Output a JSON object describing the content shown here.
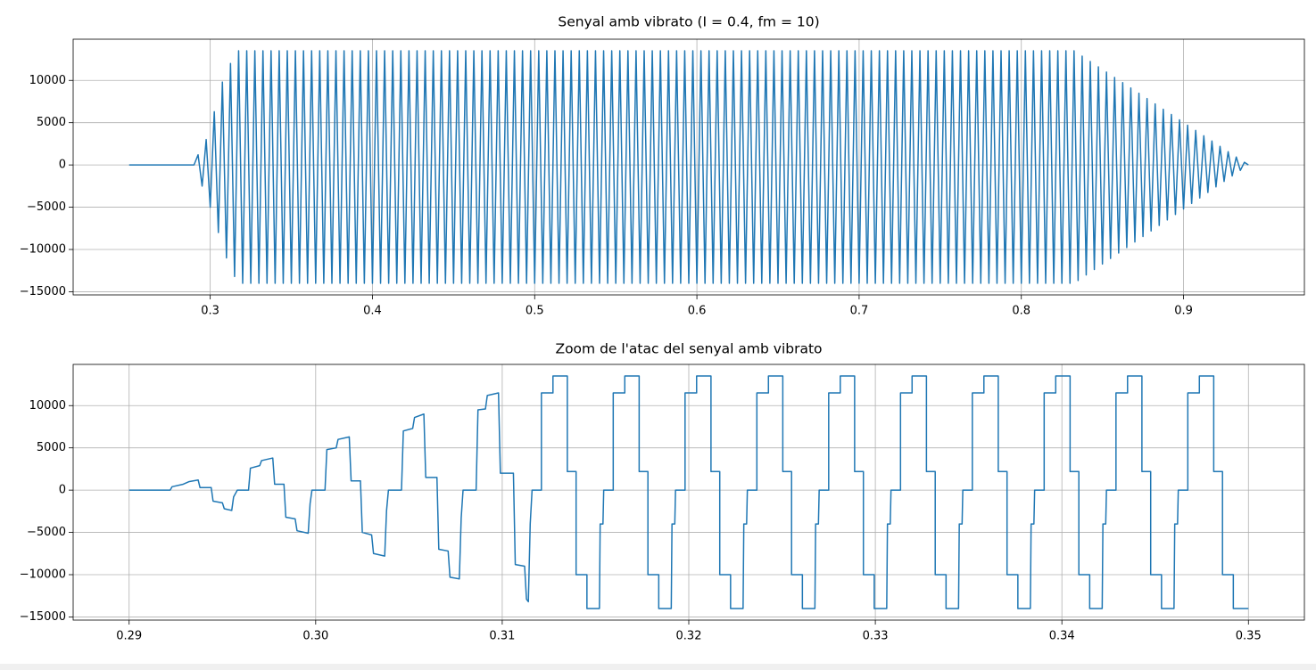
{
  "chart_data": [
    {
      "type": "line",
      "title": "Senyal amb vibrato (I = 0.4, fm = 10)",
      "color": "#1f77b4",
      "grid": true,
      "xlim": [
        0.2155,
        0.9745
      ],
      "ylim": [
        -15375,
        14875
      ],
      "xticks": [
        0.3,
        0.4,
        0.5,
        0.6,
        0.7,
        0.8,
        0.9
      ],
      "yticks": [
        10000,
        5000,
        0,
        {
          "value": -5000,
          "label": "−5000"
        },
        {
          "value": -10000,
          "label": "−10000"
        },
        {
          "value": -15000,
          "label": "−15000"
        }
      ],
      "x": [
        0.25,
        0.29,
        0.2925,
        0.295,
        0.2975,
        0.3,
        0.3025,
        0.305,
        0.3075,
        0.31,
        0.3125,
        0.315,
        0.3175,
        0.32,
        0.3225,
        0.325,
        0.3275,
        0.33,
        0.3325,
        0.335,
        0.3375,
        0.34,
        0.3425,
        0.345,
        0.3475,
        0.35,
        0.3525,
        0.355,
        0.3575,
        0.36,
        0.3625,
        0.365,
        0.3675,
        0.37,
        0.3725,
        0.375,
        0.3775,
        0.38,
        0.3825,
        0.385,
        0.3875,
        0.39,
        0.3925,
        0.395,
        0.3975,
        0.4,
        0.4025,
        0.405,
        0.4075,
        0.41,
        0.4125,
        0.415,
        0.4175,
        0.42,
        0.4225,
        0.425,
        0.4275,
        0.43,
        0.4325,
        0.435,
        0.4375,
        0.44,
        0.4425,
        0.445,
        0.4475,
        0.45,
        0.4525,
        0.455,
        0.4575,
        0.46,
        0.4625,
        0.465,
        0.4675,
        0.47,
        0.4725,
        0.475,
        0.4775,
        0.48,
        0.4825,
        0.485,
        0.4875,
        0.49,
        0.4925,
        0.495,
        0.4975,
        0.5,
        0.5025,
        0.505,
        0.5075,
        0.51,
        0.5125,
        0.515,
        0.5175,
        0.52,
        0.5225,
        0.525,
        0.5275,
        0.53,
        0.5325,
        0.535,
        0.5375,
        0.54,
        0.5425,
        0.545,
        0.5475,
        0.55,
        0.5525,
        0.555,
        0.5575,
        0.56,
        0.5625,
        0.565,
        0.5675,
        0.57,
        0.5725,
        0.575,
        0.5775,
        0.58,
        0.5825,
        0.585,
        0.5875,
        0.59,
        0.5925,
        0.595,
        0.5975,
        0.6,
        0.6025,
        0.605,
        0.6075,
        0.61,
        0.6125,
        0.615,
        0.6175,
        0.62,
        0.6225,
        0.625,
        0.6275,
        0.63,
        0.6325,
        0.635,
        0.6375,
        0.64,
        0.6425,
        0.645,
        0.6475,
        0.65,
        0.6525,
        0.655,
        0.6575,
        0.66,
        0.6625,
        0.665,
        0.6675,
        0.67,
        0.6725,
        0.675,
        0.6775,
        0.68,
        0.6825,
        0.685,
        0.6875,
        0.69,
        0.6925,
        0.695,
        0.6975,
        0.7,
        0.7025,
        0.705,
        0.7075,
        0.71,
        0.7125,
        0.715,
        0.7175,
        0.72,
        0.7225,
        0.725,
        0.7275,
        0.73,
        0.7325,
        0.735,
        0.7375,
        0.74,
        0.7425,
        0.745,
        0.7475,
        0.75,
        0.7525,
        0.755,
        0.7575,
        0.76,
        0.7625,
        0.765,
        0.7675,
        0.77,
        0.7725,
        0.775,
        0.7775,
        0.78,
        0.7825,
        0.785,
        0.7875,
        0.79,
        0.7925,
        0.795,
        0.7975,
        0.8,
        0.8025,
        0.805,
        0.8075,
        0.81,
        0.8125,
        0.815,
        0.8175,
        0.82,
        0.8225,
        0.825,
        0.8275,
        0.83,
        0.8325,
        0.835,
        0.8375,
        0.84,
        0.8425,
        0.845,
        0.8475,
        0.85,
        0.8525,
        0.855,
        0.8575,
        0.86,
        0.8625,
        0.865,
        0.8675,
        0.87,
        0.8725,
        0.875,
        0.8775,
        0.88,
        0.8825,
        0.885,
        0.8875,
        0.89,
        0.8925,
        0.895,
        0.8975,
        0.9,
        0.9025,
        0.905,
        0.9075,
        0.91,
        0.9125,
        0.915,
        0.9175,
        0.92,
        0.9225,
        0.925,
        0.9275,
        0.93,
        0.9325,
        0.935,
        0.9375,
        0.94
      ],
      "values": [
        0,
        0,
        1200,
        -2500,
        3000,
        -5000,
        6300,
        -8000,
        9800,
        -11000,
        12000,
        -13200,
        13500,
        -14000,
        13500,
        -14000,
        13500,
        -14000,
        13500,
        -14000,
        13500,
        -14000,
        13500,
        -14000,
        13500,
        -14000,
        13500,
        -14000,
        13500,
        -14000,
        13500,
        -14000,
        13500,
        -14000,
        13500,
        -14000,
        13500,
        -14000,
        13500,
        -14000,
        13500,
        -14000,
        13500,
        -14000,
        13500,
        -14000,
        13500,
        -14000,
        13500,
        -14000,
        13500,
        -14000,
        13500,
        -14000,
        13500,
        -14000,
        13500,
        -14000,
        13500,
        -14000,
        13500,
        -14000,
        13500,
        -14000,
        13500,
        -14000,
        13500,
        -14000,
        13500,
        -14000,
        13500,
        -14000,
        13500,
        -14000,
        13500,
        -14000,
        13500,
        -14000,
        13500,
        -14000,
        13500,
        -14000,
        13500,
        -14000,
        13500,
        -14000,
        13500,
        -14000,
        13500,
        -14000,
        13500,
        -14000,
        13500,
        -14000,
        13500,
        -14000,
        13500,
        -14000,
        13500,
        -14000,
        13500,
        -14000,
        13500,
        -14000,
        13500,
        -14000,
        13500,
        -14000,
        13500,
        -14000,
        13500,
        -14000,
        13500,
        -14000,
        13500,
        -14000,
        13500,
        -14000,
        13500,
        -14000,
        13500,
        -14000,
        13500,
        -14000,
        13500,
        -14000,
        13500,
        -14000,
        13500,
        -14000,
        13500,
        -14000,
        13500,
        -14000,
        13500,
        -14000,
        13500,
        -14000,
        13500,
        -14000,
        13500,
        -14000,
        13500,
        -14000,
        13500,
        -14000,
        13500,
        -14000,
        13500,
        -14000,
        13500,
        -14000,
        13500,
        -14000,
        13500,
        -14000,
        13500,
        -14000,
        13500,
        -14000,
        13500,
        -14000,
        13500,
        -14000,
        13500,
        -14000,
        13500,
        -14000,
        13500,
        -14000,
        13500,
        -14000,
        13500,
        -14000,
        13500,
        -14000,
        13500,
        -14000,
        13500,
        -14000,
        13500,
        -14000,
        13500,
        -14000,
        13500,
        -14000,
        13500,
        -14000,
        13500,
        -14000,
        13500,
        -14000,
        13500,
        -14000,
        13500,
        -14000,
        13500,
        -14000,
        13500,
        -14000,
        13500,
        -14000,
        13500,
        -14000,
        13500,
        -14000,
        13500,
        -14000,
        13500,
        -14000,
        13500,
        -14000,
        13500,
        -14000,
        13500,
        -14000,
        13500,
        -14000,
        13500,
        -13670,
        12870,
        -13020,
        12240,
        -12370,
        11610,
        -11720,
        10990,
        -11070,
        10360,
        -10420,
        9730,
        -9770,
        9100,
        -9120,
        8480,
        -8470,
        7850,
        -7810,
        7220,
        -7160,
        6590,
        -6510,
        5970,
        -5860,
        5340,
        -5210,
        4710,
        -4560,
        4080,
        -3910,
        3450,
        -3260,
        2830,
        -2600,
        2200,
        -1950,
        1570,
        -1300,
        940,
        -650,
        310,
        0
      ]
    },
    {
      "type": "line",
      "title": "Zoom de l'atac del senyal amb vibrato",
      "color": "#1f77b4",
      "grid": true,
      "xlim": [
        0.287,
        0.353
      ],
      "ylim": [
        -15375,
        14875
      ],
      "xticks": [
        0.29,
        {
          "value": 0.3,
          "label": "0.30"
        },
        0.31,
        0.32,
        0.33,
        0.34,
        0.35
      ],
      "yticks": [
        10000,
        5000,
        0,
        {
          "value": -5000,
          "label": "−5000"
        },
        {
          "value": -10000,
          "label": "−10000"
        },
        {
          "value": -15000,
          "label": "−15000"
        }
      ],
      "x": [
        0.29,
        0.2922,
        0.2923,
        0.2929,
        0.2932,
        0.2937,
        0.2938,
        0.2944,
        0.2945,
        0.295,
        0.2951,
        0.2955,
        0.2956,
        0.2958,
        0.2964,
        0.2965,
        0.297,
        0.2971,
        0.2977,
        0.2978,
        0.2983,
        0.2984,
        0.2989,
        0.299,
        0.2996,
        0.2997,
        0.2998,
        0.3005,
        0.3006,
        0.3011,
        0.3012,
        0.3018,
        0.3019,
        0.3024,
        0.3025,
        0.303,
        0.3031,
        0.3037,
        0.3038,
        0.3039,
        0.3046,
        0.3047,
        0.3052,
        0.3053,
        0.3058,
        0.3059,
        0.3065,
        0.3066,
        0.3071,
        0.3072,
        0.3077,
        0.3078,
        0.3079,
        0.3086,
        0.3087,
        0.3091,
        0.3092,
        0.3098,
        0.3099,
        0.3106,
        0.3107,
        0.3112,
        0.3113,
        0.3114,
        0.3115,
        0.3116,
        0.3121,
        0.3121,
        0.31272,
        0.31272,
        0.31349,
        0.31349,
        0.31396,
        0.31396,
        0.31454,
        0.31454,
        0.31521,
        0.31525,
        0.3154,
        0.31544,
        0.31595,
        0.31595,
        0.31657,
        0.31657,
        0.31734,
        0.31734,
        0.31781,
        0.31781,
        0.31839,
        0.31839,
        0.31906,
        0.3191,
        0.31925,
        0.31929,
        0.3198,
        0.3198,
        0.32042,
        0.32042,
        0.32119,
        0.32119,
        0.32166,
        0.32166,
        0.32224,
        0.32224,
        0.32291,
        0.32295,
        0.3231,
        0.32314,
        0.32365,
        0.32365,
        0.32427,
        0.32427,
        0.32504,
        0.32504,
        0.32551,
        0.32551,
        0.32609,
        0.32609,
        0.32676,
        0.3268,
        0.32695,
        0.32699,
        0.3275,
        0.3275,
        0.32812,
        0.32812,
        0.32889,
        0.32889,
        0.32936,
        0.32936,
        0.32994,
        0.32994,
        0.33061,
        0.33065,
        0.3308,
        0.33084,
        0.33135,
        0.33135,
        0.33197,
        0.33197,
        0.33274,
        0.33274,
        0.33321,
        0.33321,
        0.33379,
        0.33379,
        0.33446,
        0.3345,
        0.33465,
        0.33469,
        0.3352,
        0.3352,
        0.33582,
        0.33582,
        0.33659,
        0.33659,
        0.33706,
        0.33706,
        0.33764,
        0.33764,
        0.33831,
        0.33835,
        0.3385,
        0.33854,
        0.33905,
        0.33905,
        0.33967,
        0.33967,
        0.34044,
        0.34044,
        0.34091,
        0.34091,
        0.34149,
        0.34149,
        0.34216,
        0.3422,
        0.34235,
        0.34239,
        0.3429,
        0.3429,
        0.34352,
        0.34352,
        0.34429,
        0.34429,
        0.34476,
        0.34476,
        0.34534,
        0.34534,
        0.34601,
        0.34605,
        0.3462,
        0.34624,
        0.34675,
        0.34675,
        0.34737,
        0.34737,
        0.34814,
        0.34814,
        0.34861,
        0.34861,
        0.34919,
        0.34919,
        0.35
      ],
      "values": [
        0,
        0,
        400,
        700,
        1000,
        1200,
        300,
        300,
        -1300,
        -1500,
        -2200,
        -2400,
        -800,
        0,
        0,
        2600,
        2900,
        3500,
        3800,
        700,
        700,
        -3200,
        -3400,
        -4800,
        -5100,
        -1600,
        0,
        0,
        4800,
        5000,
        6000,
        6300,
        1100,
        1100,
        -5000,
        -5300,
        -7500,
        -7800,
        -2400,
        0,
        0,
        7000,
        7300,
        8600,
        9000,
        1500,
        1500,
        -7000,
        -7200,
        -10300,
        -10500,
        -3300,
        0,
        0,
        9500,
        9600,
        11200,
        11500,
        2000,
        2000,
        -8800,
        -9000,
        -12900,
        -13200,
        -4000,
        0,
        0,
        11500,
        11500,
        13500,
        13500,
        2200,
        2200,
        -10000,
        -10000,
        -14000,
        -14000,
        -4000,
        -4000,
        0,
        0,
        11500,
        11500,
        13500,
        13500,
        2200,
        2200,
        -10000,
        -10000,
        -14000,
        -14000,
        -4000,
        -4000,
        0,
        0,
        11500,
        11500,
        13500,
        13500,
        2200,
        2200,
        -10000,
        -10000,
        -14000,
        -14000,
        -4000,
        -4000,
        0,
        0,
        11500,
        11500,
        13500,
        13500,
        2200,
        2200,
        -10000,
        -10000,
        -14000,
        -14000,
        -4000,
        -4000,
        0,
        0,
        11500,
        11500,
        13500,
        13500,
        2200,
        2200,
        -10000,
        -10000,
        -14000,
        -14000,
        -4000,
        -4000,
        0,
        0,
        11500,
        11500,
        13500,
        13500,
        2200,
        2200,
        -10000,
        -10000,
        -14000,
        -14000,
        -4000,
        -4000,
        0,
        0,
        11500,
        11500,
        13500,
        13500,
        2200,
        2200,
        -10000,
        -10000,
        -14000,
        -14000,
        -4000,
        -4000,
        0,
        0,
        11500,
        11500,
        13500,
        13500,
        2200,
        2200,
        -10000,
        -10000,
        -14000,
        -14000,
        -4000,
        -4000,
        0,
        0,
        11500,
        11500,
        13500,
        13500,
        2200,
        2200,
        -10000,
        -10000,
        -14000,
        -14000,
        -4000,
        -4000,
        0,
        0,
        11500,
        11500,
        13500,
        13500,
        2200,
        2200,
        -10000,
        -10000,
        -14000,
        -14000
      ]
    }
  ]
}
